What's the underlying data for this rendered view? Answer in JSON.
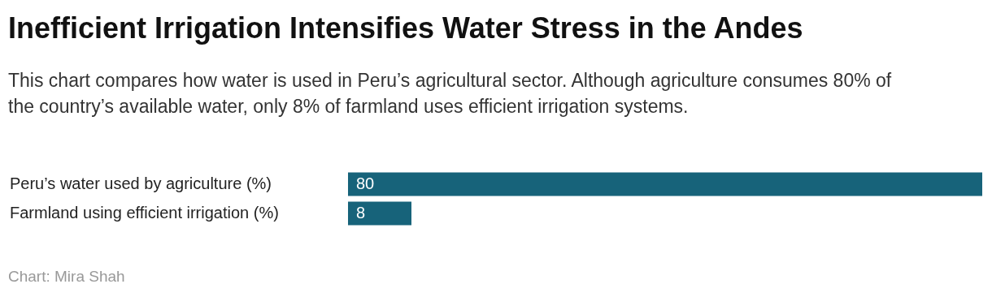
{
  "chart_data": {
    "type": "bar",
    "orientation": "horizontal",
    "title": "Inefficient Irrigation Intensifies Water Stress in the Andes",
    "subtitle": "This chart compares how water is used in Peru’s agricultural sector. Although agriculture consumes 80% of the country’s available water, only 8% of farmland uses efficient irrigation systems.",
    "categories": [
      "Peru’s water used by agriculture (%)",
      "Farmland using efficient irrigation (%)"
    ],
    "values": [
      80,
      8
    ],
    "color": "#17637a",
    "data_labels": true,
    "legend": false,
    "annotations": [
      "Chart: Mira Shah"
    ]
  }
}
